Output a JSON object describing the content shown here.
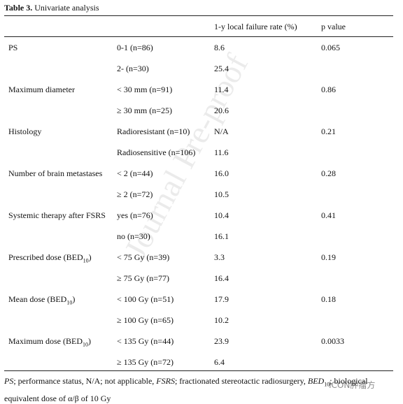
{
  "header": {
    "label": "Table 3.",
    "caption": "Univariate analysis"
  },
  "table": {
    "columns": [
      "1-y local failure rate (%)",
      "p value"
    ],
    "groups": [
      {
        "variable": "PS",
        "p": "0.065",
        "levels": [
          {
            "label": "0-1 (n=86)",
            "rate": "8.6"
          },
          {
            "label": "2- (n=30)",
            "rate": "25.4"
          }
        ]
      },
      {
        "variable": "Maximum diameter",
        "p": "0.86",
        "levels": [
          {
            "label": "< 30 mm (n=91)",
            "rate": "11.4"
          },
          {
            "label": "≥ 30 mm (n=25)",
            "rate": "20.6"
          }
        ]
      },
      {
        "variable": "Histology",
        "p": "0.21",
        "levels": [
          {
            "label": "Radioresistant (n=10)",
            "rate": "N/A"
          },
          {
            "label": "Radiosensitive (n=106)",
            "rate": "11.6"
          }
        ]
      },
      {
        "variable": "Number of brain metastases",
        "p": "0.28",
        "levels": [
          {
            "label": "< 2 (n=44)",
            "rate": "16.0"
          },
          {
            "label": "≥ 2 (n=72)",
            "rate": "10.5"
          }
        ]
      },
      {
        "variable": "Systemic therapy after FSRS",
        "p": "0.41",
        "levels": [
          {
            "label": "yes (n=76)",
            "rate": "10.4"
          },
          {
            "label": "no (n=30)",
            "rate": "16.1"
          }
        ]
      },
      {
        "variable": "Prescribed dose (BED",
        "variable_sub": "10",
        "variable_end": ")",
        "p": "0.19",
        "levels": [
          {
            "label": "< 75 Gy (n=39)",
            "rate": "3.3"
          },
          {
            "label": "≥ 75 Gy (n=77)",
            "rate": "16.4"
          }
        ]
      },
      {
        "variable": "Mean dose (BED",
        "variable_sub": "10",
        "variable_end": ")",
        "p": "0.18",
        "levels": [
          {
            "label": "< 100 Gy (n=51)",
            "rate": "17.9"
          },
          {
            "label": "≥ 100 Gy (n=65)",
            "rate": "10.2"
          }
        ]
      },
      {
        "variable": "Maximum dose (BED",
        "variable_sub": "10",
        "variable_end": ")",
        "p": "0.0033",
        "levels": [
          {
            "label": "< 135 Gy (n=44)",
            "rate": "23.9"
          },
          {
            "label": "≥ 135 Gy (n=72)",
            "rate": "6.4"
          }
        ]
      }
    ]
  },
  "footnote": [
    {
      "text": "PS",
      "italic": true
    },
    {
      "text": "; performance status, N/A; not applicable, "
    },
    {
      "text": "FSRS",
      "italic": true
    },
    {
      "text": "; fractionated stereotactic radiosurgery, "
    },
    {
      "text": "BED",
      "italic": true
    },
    {
      "text": "10",
      "sub": true
    },
    {
      "text": "; biological equivalent dose of α/β of 10 Gy"
    }
  ],
  "watermarks": [
    "Journal Pre-proof",
    "ICON肿瘤方"
  ]
}
